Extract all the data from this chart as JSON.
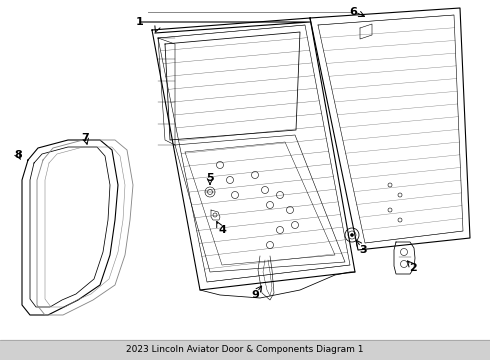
{
  "title": "2023 Lincoln Aviator Door & Components Diagram 1",
  "background_color": "#ffffff",
  "line_color": "#000000",
  "gray_color": "#888888",
  "line_width": 0.8,
  "thin_line": 0.4,
  "label_fontsize": 8
}
